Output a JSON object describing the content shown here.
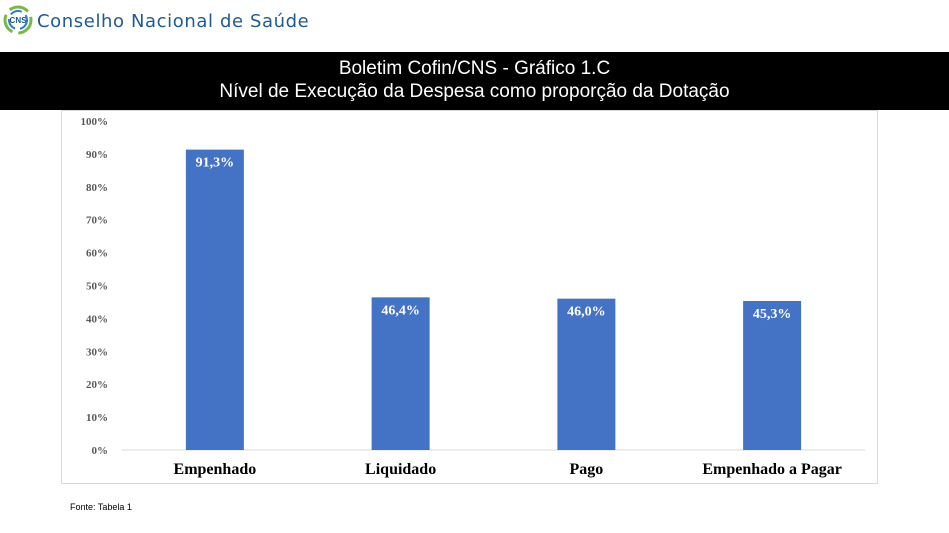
{
  "header": {
    "org_name": "Conselho Nacional de Saúde",
    "logo_text": "CNS",
    "org_color": "#1f5a94"
  },
  "title": {
    "line1": "Boletim Cofin/CNS - Gráfico 1.C",
    "line2": "Nível de Execução da Despesa como proporção da Dotação"
  },
  "chart_data": {
    "type": "bar",
    "categories": [
      "Empenhado",
      "Liquidado",
      "Pago",
      "Empenhado a Pagar"
    ],
    "values": [
      91.3,
      46.4,
      46.0,
      45.3
    ],
    "data_labels": [
      "91,3%",
      "46,4%",
      "46,0%",
      "45,3%"
    ],
    "y_ticks": [
      "0%",
      "10%",
      "20%",
      "30%",
      "40%",
      "50%",
      "60%",
      "70%",
      "80%",
      "90%",
      "100%"
    ],
    "ylim": [
      0,
      100
    ],
    "bar_color": "#4472c4",
    "grid": false,
    "legend": false
  },
  "footer": {
    "source": "Fonte: Tabela 1"
  }
}
